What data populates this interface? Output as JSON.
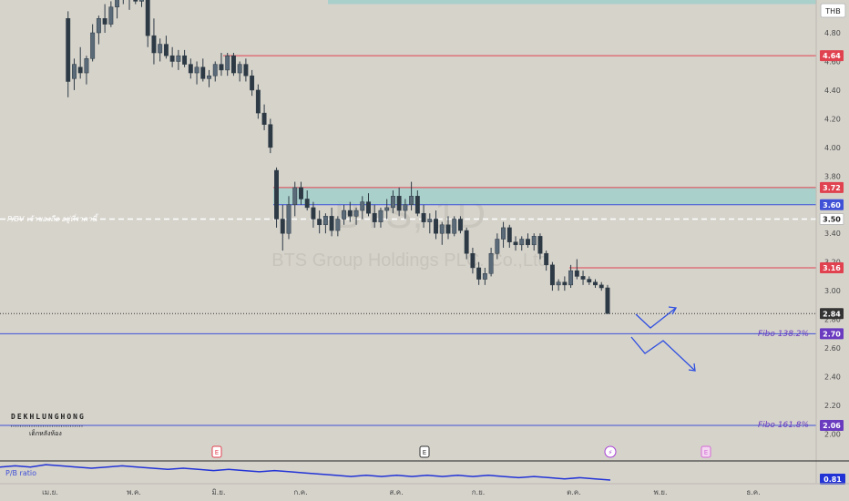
{
  "header": {
    "currency": "THB"
  },
  "watermark": {
    "symbol": "BTS, 1D",
    "company": "BTS Group Holdings PLC. Co.,Ltd"
  },
  "branding": {
    "name": "DEKHLUNGHONG",
    "subtitle": "เด็กหลังห้อง"
  },
  "indicator": {
    "name": "P/B ratio",
    "value": "0.81"
  },
  "lines": {
    "pbv_label": "P/BV เจ้าของถือ อยู่ที่ราคานี้",
    "fibo_138": "Fibo  138.2%",
    "fibo_161": "Fibo  161.8%"
  },
  "colors": {
    "background": "#d6d3cb",
    "candle": "#2d3a45",
    "resistance": "#e0424f",
    "support_blue": "#3f51d6",
    "zone": "#a2cfcd",
    "fibo": "#6a3bbf",
    "current": "#333333"
  },
  "events": [
    {
      "label": "E",
      "type": "earnings",
      "color": "#e0424f"
    },
    {
      "label": "E",
      "type": "earnings",
      "color": "#333333"
    },
    {
      "label": "⚡",
      "type": "split",
      "color": "#a83fd6"
    },
    {
      "label": "E",
      "type": "earnings-upcoming",
      "color": "#d46ad6"
    }
  ],
  "chart_data": {
    "type": "candlestick",
    "title": "BTS, 1D",
    "y_axis": {
      "range": [
        1.95,
        5.12
      ],
      "ticks": [
        "4.80",
        "4.60",
        "4.40",
        "4.20",
        "4.00",
        "3.80",
        "3.60",
        "3.40",
        "3.20",
        "3.00",
        "2.80",
        "2.60",
        "2.40",
        "2.20",
        "2.00"
      ]
    },
    "x_axis": {
      "ticks": [
        "เม.ย.",
        "พ.ค.",
        "มิ.ย.",
        "ก.ค.",
        "ส.ค.",
        "ก.ย.",
        "ต.ค.",
        "พ.ย.",
        "ธ.ค."
      ]
    },
    "price_markers": [
      {
        "value": "4.64",
        "color": "#e0424f"
      },
      {
        "value": "3.72",
        "color": "#e0424f"
      },
      {
        "value": "3.60",
        "color": "#3f51d6"
      },
      {
        "value": "3.50",
        "color": "#ffffff"
      },
      {
        "value": "3.16",
        "color": "#e0424f"
      },
      {
        "value": "2.84",
        "color": "#333333"
      },
      {
        "value": "2.70",
        "color": "#6a3bbf"
      },
      {
        "value": "2.06",
        "color": "#6a3bbf"
      }
    ],
    "horizontal_levels": [
      {
        "price": 4.64,
        "style": "solid",
        "color": "#e0424f",
        "from": 245
      },
      {
        "price": 3.72,
        "style": "solid",
        "color": "#e0424f",
        "from": 300
      },
      {
        "price": 3.6,
        "style": "solid",
        "color": "#3f51d6",
        "from": 300
      },
      {
        "price": 3.5,
        "style": "dashed",
        "color": "#ffffff",
        "from": 0
      },
      {
        "price": 3.16,
        "style": "solid",
        "color": "#e0424f",
        "from": 625
      },
      {
        "price": 2.84,
        "style": "dotted",
        "color": "#333333",
        "from": 0
      },
      {
        "price": 2.7,
        "style": "solid",
        "color": "#3f51d6",
        "from": 0
      },
      {
        "price": 2.06,
        "style": "solid",
        "color": "#3f51d6",
        "from": 0
      }
    ],
    "zones": [
      {
        "top": 5.12,
        "bottom": 5.0,
        "from": 360
      },
      {
        "top": 3.72,
        "bottom": 3.6,
        "from": 300
      }
    ],
    "candles": [
      {
        "o": 5.14,
        "h": 5.16,
        "l": 5.08,
        "c": 5.1
      },
      {
        "o": 4.9,
        "h": 4.95,
        "l": 4.35,
        "c": 4.46
      },
      {
        "o": 4.48,
        "h": 4.62,
        "l": 4.4,
        "c": 4.58
      },
      {
        "o": 4.56,
        "h": 4.7,
        "l": 4.48,
        "c": 4.52
      },
      {
        "o": 4.52,
        "h": 4.64,
        "l": 4.44,
        "c": 4.62
      },
      {
        "o": 4.62,
        "h": 4.86,
        "l": 4.6,
        "c": 4.8
      },
      {
        "o": 4.8,
        "h": 4.92,
        "l": 4.72,
        "c": 4.9
      },
      {
        "o": 4.9,
        "h": 5.0,
        "l": 4.8,
        "c": 4.86
      },
      {
        "o": 4.86,
        "h": 5.02,
        "l": 4.84,
        "c": 4.98
      },
      {
        "o": 4.98,
        "h": 5.1,
        "l": 4.9,
        "c": 5.08
      },
      {
        "o": 5.08,
        "h": 5.14,
        "l": 5.0,
        "c": 5.04
      },
      {
        "o": 5.04,
        "h": 5.14,
        "l": 4.96,
        "c": 5.1
      },
      {
        "o": 5.1,
        "h": 5.16,
        "l": 5.0,
        "c": 5.02
      },
      {
        "o": 5.02,
        "h": 5.12,
        "l": 4.98,
        "c": 5.08
      },
      {
        "o": 5.08,
        "h": 5.14,
        "l": 4.7,
        "c": 4.78
      },
      {
        "o": 4.78,
        "h": 4.9,
        "l": 4.58,
        "c": 4.66
      },
      {
        "o": 4.66,
        "h": 4.76,
        "l": 4.6,
        "c": 4.72
      },
      {
        "o": 4.72,
        "h": 4.78,
        "l": 4.62,
        "c": 4.64
      },
      {
        "o": 4.64,
        "h": 4.7,
        "l": 4.56,
        "c": 4.6
      },
      {
        "o": 4.6,
        "h": 4.68,
        "l": 4.54,
        "c": 4.64
      },
      {
        "o": 4.64,
        "h": 4.68,
        "l": 4.56,
        "c": 4.58
      },
      {
        "o": 4.58,
        "h": 4.62,
        "l": 4.48,
        "c": 4.52
      },
      {
        "o": 4.52,
        "h": 4.6,
        "l": 4.44,
        "c": 4.56
      },
      {
        "o": 4.56,
        "h": 4.62,
        "l": 4.46,
        "c": 4.48
      },
      {
        "o": 4.48,
        "h": 4.54,
        "l": 4.42,
        "c": 4.5
      },
      {
        "o": 4.5,
        "h": 4.6,
        "l": 4.46,
        "c": 4.58
      },
      {
        "o": 4.58,
        "h": 4.66,
        "l": 4.5,
        "c": 4.54
      },
      {
        "o": 4.54,
        "h": 4.66,
        "l": 4.5,
        "c": 4.64
      },
      {
        "o": 4.64,
        "h": 4.66,
        "l": 4.5,
        "c": 4.52
      },
      {
        "o": 4.52,
        "h": 4.6,
        "l": 4.46,
        "c": 4.58
      },
      {
        "o": 4.58,
        "h": 4.62,
        "l": 4.46,
        "c": 4.5
      },
      {
        "o": 4.5,
        "h": 4.54,
        "l": 4.36,
        "c": 4.4
      },
      {
        "o": 4.4,
        "h": 4.44,
        "l": 4.2,
        "c": 4.24
      },
      {
        "o": 4.24,
        "h": 4.3,
        "l": 4.12,
        "c": 4.16
      },
      {
        "o": 4.16,
        "h": 4.2,
        "l": 3.96,
        "c": 4.0
      },
      {
        "o": 3.84,
        "h": 3.86,
        "l": 3.44,
        "c": 3.5
      },
      {
        "o": 3.5,
        "h": 3.6,
        "l": 3.28,
        "c": 3.4
      },
      {
        "o": 3.4,
        "h": 3.66,
        "l": 3.36,
        "c": 3.6
      },
      {
        "o": 3.6,
        "h": 3.76,
        "l": 3.52,
        "c": 3.72
      },
      {
        "o": 3.72,
        "h": 3.76,
        "l": 3.6,
        "c": 3.64
      },
      {
        "o": 3.64,
        "h": 3.7,
        "l": 3.56,
        "c": 3.58
      },
      {
        "o": 3.58,
        "h": 3.62,
        "l": 3.44,
        "c": 3.5
      },
      {
        "o": 3.5,
        "h": 3.56,
        "l": 3.4,
        "c": 3.46
      },
      {
        "o": 3.46,
        "h": 3.54,
        "l": 3.4,
        "c": 3.52
      },
      {
        "o": 3.52,
        "h": 3.58,
        "l": 3.38,
        "c": 3.42
      },
      {
        "o": 3.42,
        "h": 3.52,
        "l": 3.38,
        "c": 3.5
      },
      {
        "o": 3.5,
        "h": 3.6,
        "l": 3.46,
        "c": 3.56
      },
      {
        "o": 3.56,
        "h": 3.62,
        "l": 3.48,
        "c": 3.52
      },
      {
        "o": 3.52,
        "h": 3.58,
        "l": 3.46,
        "c": 3.56
      },
      {
        "o": 3.56,
        "h": 3.66,
        "l": 3.5,
        "c": 3.62
      },
      {
        "o": 3.62,
        "h": 3.68,
        "l": 3.52,
        "c": 3.54
      },
      {
        "o": 3.54,
        "h": 3.6,
        "l": 3.44,
        "c": 3.48
      },
      {
        "o": 3.48,
        "h": 3.58,
        "l": 3.44,
        "c": 3.56
      },
      {
        "o": 3.56,
        "h": 3.64,
        "l": 3.5,
        "c": 3.58
      },
      {
        "o": 3.58,
        "h": 3.7,
        "l": 3.54,
        "c": 3.66
      },
      {
        "o": 3.66,
        "h": 3.72,
        "l": 3.52,
        "c": 3.56
      },
      {
        "o": 3.56,
        "h": 3.64,
        "l": 3.5,
        "c": 3.6
      },
      {
        "o": 3.6,
        "h": 3.76,
        "l": 3.56,
        "c": 3.66
      },
      {
        "o": 3.66,
        "h": 3.7,
        "l": 3.52,
        "c": 3.54
      },
      {
        "o": 3.54,
        "h": 3.6,
        "l": 3.44,
        "c": 3.48
      },
      {
        "o": 3.48,
        "h": 3.54,
        "l": 3.4,
        "c": 3.5
      },
      {
        "o": 3.5,
        "h": 3.56,
        "l": 3.36,
        "c": 3.4
      },
      {
        "o": 3.4,
        "h": 3.48,
        "l": 3.32,
        "c": 3.46
      },
      {
        "o": 3.46,
        "h": 3.52,
        "l": 3.36,
        "c": 3.4
      },
      {
        "o": 3.4,
        "h": 3.52,
        "l": 3.38,
        "c": 3.5
      },
      {
        "o": 3.5,
        "h": 3.52,
        "l": 3.4,
        "c": 3.42
      },
      {
        "o": 3.42,
        "h": 3.44,
        "l": 3.22,
        "c": 3.26
      },
      {
        "o": 3.26,
        "h": 3.3,
        "l": 3.12,
        "c": 3.16
      },
      {
        "o": 3.16,
        "h": 3.2,
        "l": 3.04,
        "c": 3.08
      },
      {
        "o": 3.08,
        "h": 3.16,
        "l": 3.04,
        "c": 3.12
      },
      {
        "o": 3.12,
        "h": 3.3,
        "l": 3.1,
        "c": 3.26
      },
      {
        "o": 3.26,
        "h": 3.4,
        "l": 3.22,
        "c": 3.36
      },
      {
        "o": 3.36,
        "h": 3.48,
        "l": 3.3,
        "c": 3.44
      },
      {
        "o": 3.44,
        "h": 3.46,
        "l": 3.3,
        "c": 3.34
      },
      {
        "o": 3.34,
        "h": 3.38,
        "l": 3.28,
        "c": 3.32
      },
      {
        "o": 3.32,
        "h": 3.38,
        "l": 3.28,
        "c": 3.36
      },
      {
        "o": 3.36,
        "h": 3.4,
        "l": 3.3,
        "c": 3.32
      },
      {
        "o": 3.32,
        "h": 3.4,
        "l": 3.28,
        "c": 3.38
      },
      {
        "o": 3.38,
        "h": 3.4,
        "l": 3.22,
        "c": 3.26
      },
      {
        "o": 3.26,
        "h": 3.28,
        "l": 3.14,
        "c": 3.18
      },
      {
        "o": 3.18,
        "h": 3.2,
        "l": 3.0,
        "c": 3.04
      },
      {
        "o": 3.04,
        "h": 3.08,
        "l": 3.0,
        "c": 3.06
      },
      {
        "o": 3.06,
        "h": 3.1,
        "l": 3.0,
        "c": 3.04
      },
      {
        "o": 3.04,
        "h": 3.18,
        "l": 3.02,
        "c": 3.14
      },
      {
        "o": 3.14,
        "h": 3.22,
        "l": 3.08,
        "c": 3.1
      },
      {
        "o": 3.1,
        "h": 3.14,
        "l": 3.04,
        "c": 3.08
      },
      {
        "o": 3.08,
        "h": 3.1,
        "l": 3.04,
        "c": 3.06
      },
      {
        "o": 3.06,
        "h": 3.08,
        "l": 3.02,
        "c": 3.04
      },
      {
        "o": 3.04,
        "h": 3.06,
        "l": 3.0,
        "c": 3.02
      },
      {
        "o": 3.02,
        "h": 3.04,
        "l": 2.84,
        "c": 2.84
      }
    ],
    "indicator_series": {
      "name": "P/B ratio",
      "values": [
        0.92,
        0.93,
        0.92,
        0.94,
        0.93,
        0.92,
        0.91,
        0.92,
        0.93,
        0.92,
        0.91,
        0.9,
        0.91,
        0.9,
        0.89,
        0.9,
        0.89,
        0.88,
        0.89,
        0.88,
        0.87,
        0.86,
        0.85,
        0.84,
        0.85,
        0.84,
        0.85,
        0.84,
        0.85,
        0.84,
        0.85,
        0.84,
        0.85,
        0.84,
        0.83,
        0.84,
        0.83,
        0.82,
        0.83,
        0.82,
        0.81
      ]
    }
  }
}
